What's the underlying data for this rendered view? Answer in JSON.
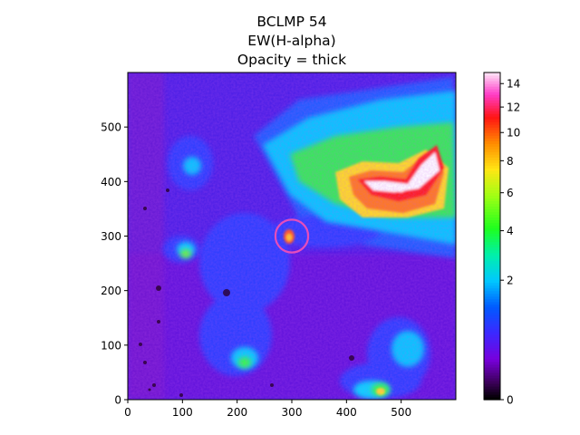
{
  "chart_data": {
    "type": "heatmap",
    "title_lines": [
      "BCLMP 54",
      "EW(H-alpha)",
      "Opacity = thick"
    ],
    "xlabel": "",
    "ylabel": "",
    "xlim": [
      0,
      600
    ],
    "ylim": [
      0,
      600
    ],
    "x_ticks": [
      0,
      100,
      200,
      300,
      400,
      500
    ],
    "y_ticks": [
      0,
      100,
      200,
      300,
      400,
      500
    ],
    "colormap": "gist_ncar",
    "colorbar": {
      "min": 0,
      "max": 15,
      "scale": "sqrt",
      "ticks": [
        0,
        2,
        4,
        6,
        8,
        10,
        12,
        14
      ]
    },
    "aperture": {
      "x": 300,
      "y": 300,
      "radius": 30,
      "color": "#e64dbb"
    },
    "grid": false
  }
}
